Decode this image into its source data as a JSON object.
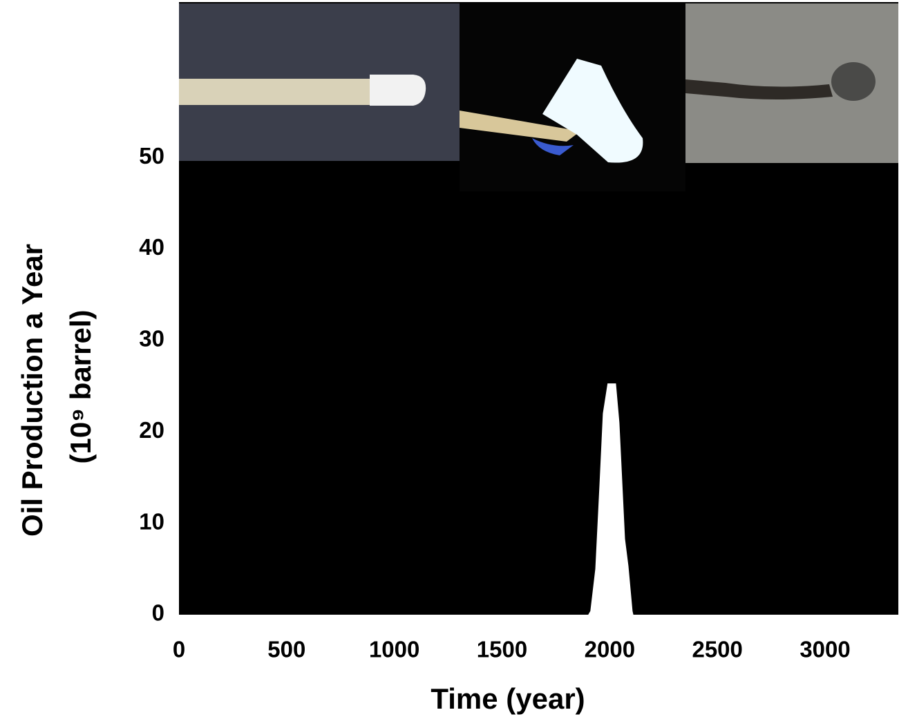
{
  "chart_data": {
    "type": "area",
    "x_label": "Time (year)",
    "y_label": [
      "Oil Production a Year",
      "(10⁹ barrel)"
    ],
    "x": [
      0,
      1900,
      1910,
      1933,
      1952,
      1968,
      1990,
      2029,
      2045,
      2071,
      2087,
      2106,
      2110
    ],
    "values": [
      0,
      0,
      0.4,
      5,
      14,
      22,
      25.3,
      25.3,
      21,
      8.3,
      5.3,
      0.4,
      0
    ],
    "color": "#ffffff",
    "background": "#000000",
    "xlim": [
      0,
      3340
    ],
    "xticks": [
      0,
      500,
      1000,
      1500,
      2000,
      2500,
      3000
    ],
    "ylim": [
      0,
      67
    ],
    "yticks": [
      0,
      10,
      20,
      30,
      40,
      50
    ],
    "grid": false
  }
}
